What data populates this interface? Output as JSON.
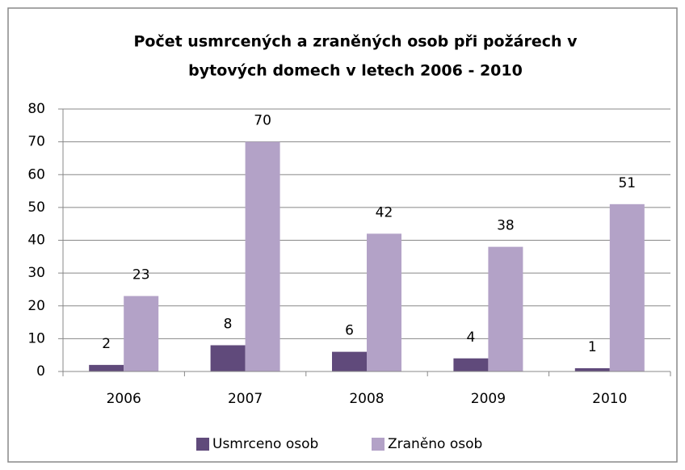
{
  "chart_data": {
    "type": "bar",
    "title": [
      "Počet usmrcených a zraněných osob při požárech v",
      "bytových domech v letech 2006 - 2010"
    ],
    "categories": [
      "2006",
      "2007",
      "2008",
      "2009",
      "2010"
    ],
    "series": [
      {
        "name": "Usmrceno osob",
        "color": "#604a7b",
        "values": [
          2,
          8,
          6,
          4,
          1
        ]
      },
      {
        "name": "Zraněno osob",
        "color": "#b3a2c7",
        "values": [
          23,
          70,
          42,
          38,
          51
        ]
      }
    ],
    "ylim": [
      0,
      80
    ],
    "yticks": [
      0,
      10,
      20,
      30,
      40,
      50,
      60,
      70,
      80
    ],
    "grid": true,
    "legend": "bottom"
  }
}
